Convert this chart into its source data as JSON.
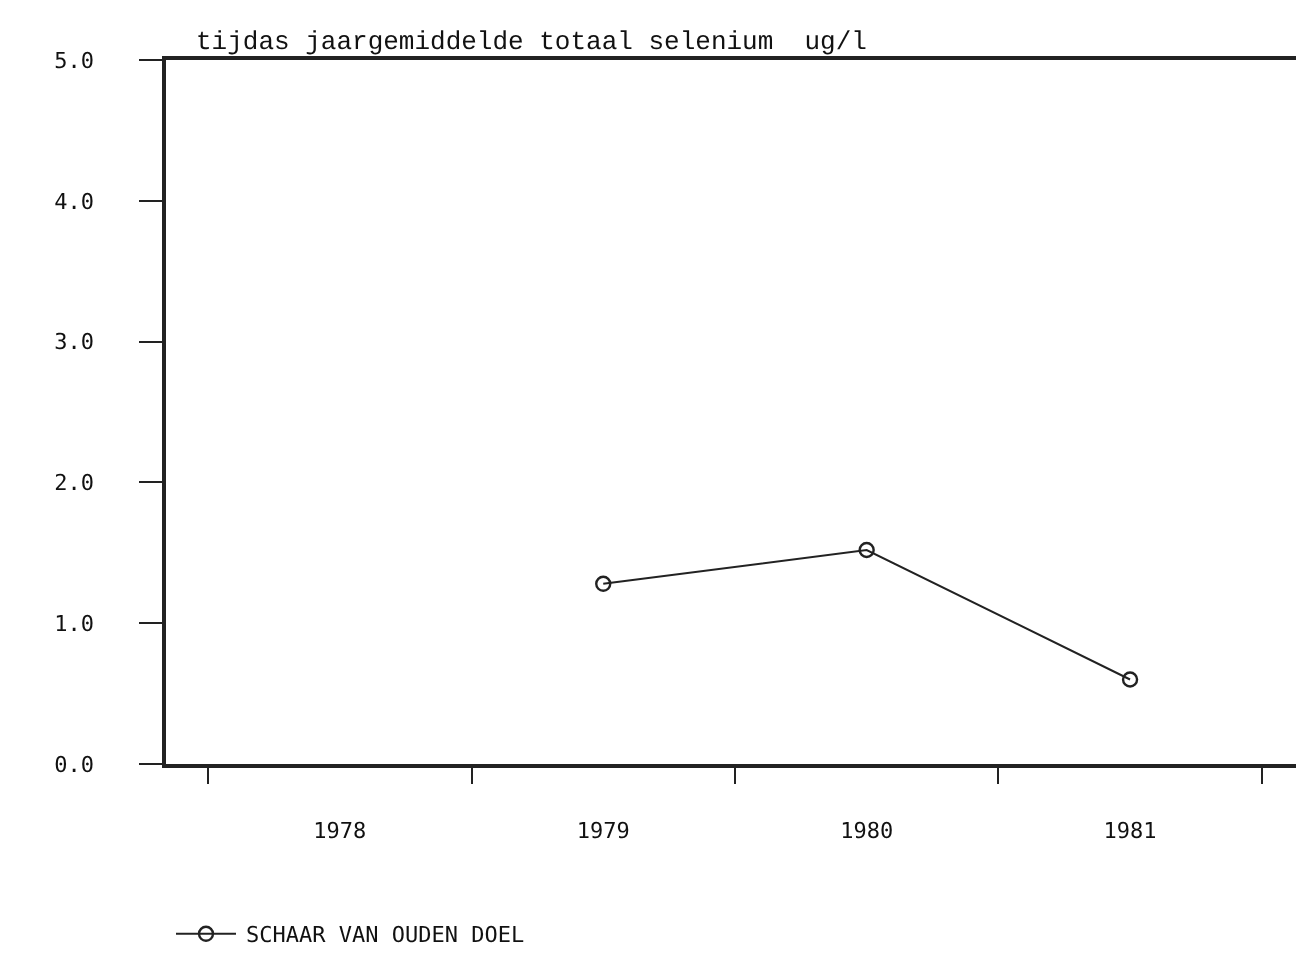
{
  "chart_data": {
    "type": "line",
    "title": "tijdas jaargemiddelde totaal selenium  ug/l",
    "categories": [
      "1978",
      "1979",
      "1980",
      "1981"
    ],
    "series": [
      {
        "name": "SCHAAR VAN OUDEN DOEL",
        "color": "#222222",
        "values": [
          null,
          1.28,
          1.52,
          0.6
        ]
      }
    ],
    "ylim": [
      0,
      5
    ],
    "yticks": [
      {
        "value": 0,
        "label": "0.0"
      },
      {
        "value": 1,
        "label": "1.0"
      },
      {
        "value": 2,
        "label": "2.0"
      },
      {
        "value": 3,
        "label": "3.0"
      },
      {
        "value": 4,
        "label": "4.0"
      },
      {
        "value": 5,
        "label": "5.0"
      }
    ],
    "marker": "circle",
    "line_style": "solid",
    "legend": "bottom left"
  }
}
